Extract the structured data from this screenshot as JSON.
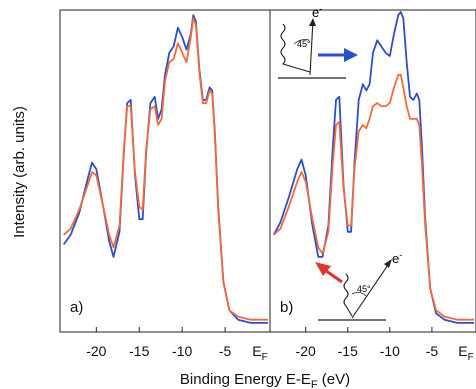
{
  "chart_data": {
    "type": "line",
    "xlabel": "Binding Energy E-E",
    "xlabel_sub": "F",
    "xlabel_unit": " (eV)",
    "ylabel": "Intensity (arb. units)",
    "xlim": [
      -24,
      0
    ],
    "ylim": [
      0,
      1
    ],
    "xticks": [
      {
        "value": -20,
        "label": "-20"
      },
      {
        "value": -15,
        "label": "-15"
      },
      {
        "value": -10,
        "label": "-10"
      },
      {
        "value": -5,
        "label": "-5"
      }
    ],
    "ef_label": "E",
    "ef_sub": "F",
    "colors": {
      "blue": "#2b4fc8",
      "red": "#f26a3c"
    },
    "panels": [
      {
        "label": "a)",
        "annotations": [],
        "series": [
          {
            "color": "blue",
            "points": [
              [
                -23.8,
                0.26
              ],
              [
                -23,
                0.29
              ],
              [
                -22,
                0.36
              ],
              [
                -21,
                0.47
              ],
              [
                -20.5,
                0.52
              ],
              [
                -20,
                0.5
              ],
              [
                -19.2,
                0.38
              ],
              [
                -18.5,
                0.27
              ],
              [
                -18,
                0.22
              ],
              [
                -17.3,
                0.3
              ],
              [
                -16.8,
                0.55
              ],
              [
                -16.4,
                0.71
              ],
              [
                -16,
                0.72
              ],
              [
                -15.5,
                0.48
              ],
              [
                -15,
                0.34
              ],
              [
                -14.6,
                0.34
              ],
              [
                -14.2,
                0.55
              ],
              [
                -13.7,
                0.71
              ],
              [
                -13.2,
                0.73
              ],
              [
                -12.8,
                0.66
              ],
              [
                -12.4,
                0.69
              ],
              [
                -12,
                0.8
              ],
              [
                -11.5,
                0.87
              ],
              [
                -11,
                0.89
              ],
              [
                -10.5,
                0.95
              ],
              [
                -10,
                0.92
              ],
              [
                -9.5,
                0.88
              ],
              [
                -9,
                0.93
              ],
              [
                -8.7,
                0.99
              ],
              [
                -8.4,
                0.97
              ],
              [
                -8,
                0.82
              ],
              [
                -7.6,
                0.72
              ],
              [
                -7.2,
                0.72
              ],
              [
                -6.8,
                0.76
              ],
              [
                -6.5,
                0.75
              ],
              [
                -6.2,
                0.62
              ],
              [
                -5.8,
                0.38
              ],
              [
                -5.2,
                0.14
              ],
              [
                -4.5,
                0.05
              ],
              [
                -3.5,
                0.02
              ],
              [
                -2,
                0.01
              ],
              [
                0,
                0.01
              ]
            ]
          },
          {
            "color": "red",
            "points": [
              [
                -23.8,
                0.29
              ],
              [
                -23,
                0.31
              ],
              [
                -22,
                0.37
              ],
              [
                -21,
                0.45
              ],
              [
                -20.5,
                0.49
              ],
              [
                -20,
                0.48
              ],
              [
                -19.2,
                0.38
              ],
              [
                -18.5,
                0.29
              ],
              [
                -18,
                0.25
              ],
              [
                -17.3,
                0.32
              ],
              [
                -16.8,
                0.56
              ],
              [
                -16.4,
                0.7
              ],
              [
                -16,
                0.7
              ],
              [
                -15.5,
                0.49
              ],
              [
                -15,
                0.38
              ],
              [
                -14.6,
                0.37
              ],
              [
                -14.2,
                0.56
              ],
              [
                -13.7,
                0.69
              ],
              [
                -13.2,
                0.7
              ],
              [
                -12.8,
                0.64
              ],
              [
                -12.4,
                0.66
              ],
              [
                -12,
                0.78
              ],
              [
                -11.5,
                0.84
              ],
              [
                -11,
                0.85
              ],
              [
                -10.5,
                0.9
              ],
              [
                -10,
                0.87
              ],
              [
                -9.5,
                0.84
              ],
              [
                -9,
                0.92
              ],
              [
                -8.7,
                0.98
              ],
              [
                -8.4,
                0.96
              ],
              [
                -8,
                0.81
              ],
              [
                -7.6,
                0.71
              ],
              [
                -7.2,
                0.71
              ],
              [
                -6.8,
                0.75
              ],
              [
                -6.5,
                0.74
              ],
              [
                -6.2,
                0.61
              ],
              [
                -5.8,
                0.37
              ],
              [
                -5.2,
                0.14
              ],
              [
                -4.5,
                0.05
              ],
              [
                -3.5,
                0.03
              ],
              [
                -2,
                0.02
              ],
              [
                0,
                0.02
              ]
            ]
          }
        ]
      },
      {
        "label": "b)",
        "annotations": [
          {
            "name": "photon-inset-top",
            "angle": "45°",
            "electron": "e",
            "superscript": "-",
            "arrow_color": "#2b4fc8",
            "direction": "right"
          },
          {
            "name": "photon-inset-bottom",
            "angle": "45°",
            "electron": "e",
            "superscript": "-",
            "arrow_color": "#e5332a",
            "direction": "up-left"
          }
        ],
        "series": [
          {
            "color": "blue",
            "points": [
              [
                -23.8,
                0.29
              ],
              [
                -23,
                0.33
              ],
              [
                -22,
                0.41
              ],
              [
                -21,
                0.5
              ],
              [
                -20.5,
                0.53
              ],
              [
                -20,
                0.48
              ],
              [
                -19.2,
                0.32
              ],
              [
                -18.5,
                0.22
              ],
              [
                -18,
                0.22
              ],
              [
                -17.3,
                0.32
              ],
              [
                -16.8,
                0.56
              ],
              [
                -16.4,
                0.72
              ],
              [
                -16,
                0.73
              ],
              [
                -15.5,
                0.45
              ],
              [
                -15,
                0.3
              ],
              [
                -14.6,
                0.3
              ],
              [
                -14.2,
                0.52
              ],
              [
                -13.7,
                0.72
              ],
              [
                -13.2,
                0.77
              ],
              [
                -12.8,
                0.75
              ],
              [
                -12.4,
                0.77
              ],
              [
                -12,
                0.87
              ],
              [
                -11.5,
                0.91
              ],
              [
                -11,
                0.89
              ],
              [
                -10.5,
                0.87
              ],
              [
                -10,
                0.86
              ],
              [
                -9.5,
                0.93
              ],
              [
                -9,
                0.99
              ],
              [
                -8.7,
                1.0
              ],
              [
                -8.4,
                0.98
              ],
              [
                -8,
                0.84
              ],
              [
                -7.6,
                0.73
              ],
              [
                -7.2,
                0.72
              ],
              [
                -6.8,
                0.74
              ],
              [
                -6.5,
                0.72
              ],
              [
                -6.2,
                0.58
              ],
              [
                -5.8,
                0.34
              ],
              [
                -5.2,
                0.12
              ],
              [
                -4.5,
                0.04
              ],
              [
                -3.5,
                0.02
              ],
              [
                -2,
                0.01
              ],
              [
                0,
                0.01
              ]
            ]
          },
          {
            "color": "red",
            "points": [
              [
                -23.8,
                0.29
              ],
              [
                -23,
                0.31
              ],
              [
                -22,
                0.38
              ],
              [
                -21,
                0.46
              ],
              [
                -20.5,
                0.49
              ],
              [
                -20,
                0.46
              ],
              [
                -19.2,
                0.34
              ],
              [
                -18.5,
                0.25
              ],
              [
                -18,
                0.23
              ],
              [
                -17.3,
                0.3
              ],
              [
                -16.8,
                0.51
              ],
              [
                -16.4,
                0.64
              ],
              [
                -16,
                0.65
              ],
              [
                -15.5,
                0.44
              ],
              [
                -15,
                0.32
              ],
              [
                -14.6,
                0.32
              ],
              [
                -14.2,
                0.5
              ],
              [
                -13.7,
                0.62
              ],
              [
                -13.2,
                0.64
              ],
              [
                -12.8,
                0.63
              ],
              [
                -12.4,
                0.66
              ],
              [
                -12,
                0.7
              ],
              [
                -11.5,
                0.71
              ],
              [
                -11,
                0.7
              ],
              [
                -10.5,
                0.7
              ],
              [
                -10,
                0.71
              ],
              [
                -9.5,
                0.76
              ],
              [
                -9,
                0.8
              ],
              [
                -8.7,
                0.8
              ],
              [
                -8.4,
                0.76
              ],
              [
                -8,
                0.7
              ],
              [
                -7.6,
                0.66
              ],
              [
                -7.2,
                0.66
              ],
              [
                -6.8,
                0.66
              ],
              [
                -6.5,
                0.64
              ],
              [
                -6.2,
                0.52
              ],
              [
                -5.8,
                0.32
              ],
              [
                -5.2,
                0.12
              ],
              [
                -4.5,
                0.05
              ],
              [
                -3.5,
                0.03
              ],
              [
                -2,
                0.02
              ],
              [
                0,
                0.02
              ]
            ]
          }
        ]
      }
    ]
  }
}
